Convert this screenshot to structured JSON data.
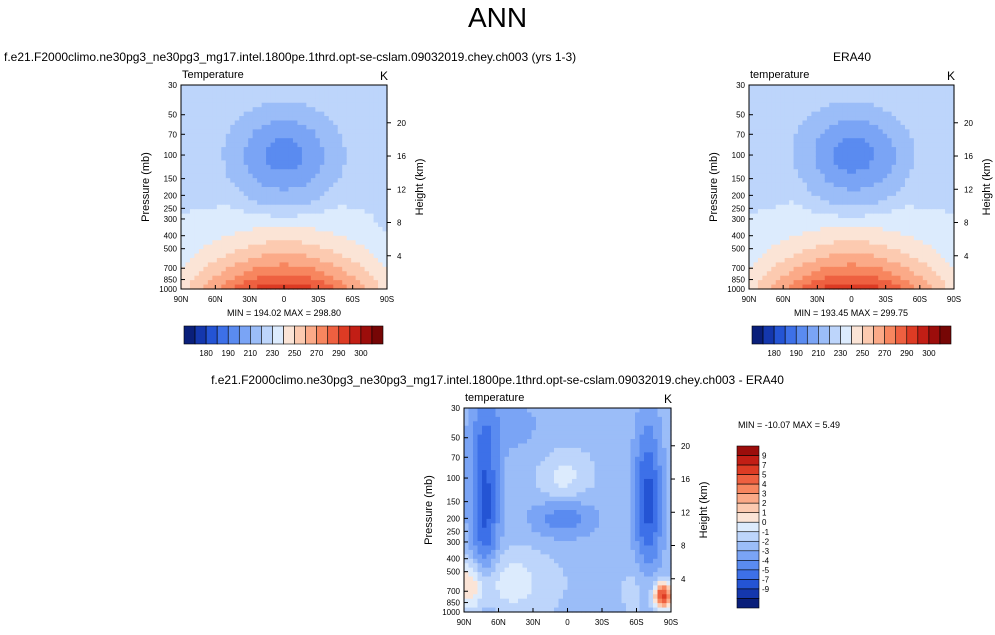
{
  "page": {
    "title": "ANN"
  },
  "chart_data": [
    {
      "type": "heatmap",
      "title": "f.e21.F2000climo.ne30pg3_ne30pg3_mg17.intel.1800pe.1thrd.opt-se-cslam.09032019.chey.ch003 (yrs 1-3)",
      "variable": "Temperature",
      "units": "K",
      "xlabel": "",
      "ylabel": "Pressure (mb)",
      "y2label": "Height (km)",
      "x_ticks": [
        "90N",
        "60N",
        "30N",
        "0",
        "30S",
        "60S",
        "90S"
      ],
      "x_range": [
        90,
        -90
      ],
      "y_ticks": [
        30,
        50,
        70,
        100,
        150,
        200,
        250,
        300,
        400,
        500,
        700,
        850,
        1000
      ],
      "y_range": [
        30,
        1000
      ],
      "y_scale": "log",
      "y2_ticks": [
        20,
        16,
        12,
        8,
        4
      ],
      "stats": "MIN = 194.02  MAX = 298.80",
      "min": 194.02,
      "max": 298.8,
      "colorbar": {
        "orientation": "horizontal",
        "labels": [
          "180",
          "190",
          "210",
          "230",
          "250",
          "270",
          "290",
          "300"
        ]
      }
    },
    {
      "type": "heatmap",
      "title": "ERA40",
      "variable": "temperature",
      "units": "K",
      "xlabel": "",
      "ylabel": "Pressure (mb)",
      "y2label": "Height (km)",
      "x_ticks": [
        "90N",
        "60N",
        "30N",
        "0",
        "30S",
        "60S",
        "90S"
      ],
      "x_range": [
        90,
        -90
      ],
      "y_ticks": [
        30,
        50,
        70,
        100,
        150,
        200,
        250,
        300,
        400,
        500,
        700,
        850,
        1000
      ],
      "y_range": [
        30,
        1000
      ],
      "y_scale": "log",
      "y2_ticks": [
        20,
        16,
        12,
        8,
        4
      ],
      "stats": "MIN = 193.45  MAX = 299.75",
      "min": 193.45,
      "max": 299.75,
      "colorbar": {
        "orientation": "horizontal",
        "labels": [
          "180",
          "190",
          "210",
          "230",
          "250",
          "270",
          "290",
          "300"
        ]
      }
    },
    {
      "type": "heatmap",
      "title": "f.e21.F2000climo.ne30pg3_ne30pg3_mg17.intel.1800pe.1thrd.opt-se-cslam.09032019.chey.ch003 - ERA40",
      "variable": "temperature",
      "units": "K",
      "xlabel": "",
      "ylabel": "Pressure (mb)",
      "y2label": "Height (km)",
      "x_ticks": [
        "90N",
        "60N",
        "30N",
        "0",
        "30S",
        "60S",
        "90S"
      ],
      "x_range": [
        90,
        -90
      ],
      "y_ticks": [
        30,
        50,
        70,
        100,
        150,
        200,
        250,
        300,
        400,
        500,
        700,
        850,
        1000
      ],
      "y_range": [
        30,
        1000
      ],
      "y_scale": "log",
      "y2_ticks": [
        20,
        16,
        12,
        8,
        4
      ],
      "stats": "MIN = -10.07  MAX =   5.49",
      "min": -10.07,
      "max": 5.49,
      "colorbar": {
        "orientation": "vertical",
        "labels": [
          "9",
          "7",
          "5",
          "4",
          "3",
          "2",
          "1",
          "0",
          "-1",
          "-2",
          "-3",
          "-4",
          "-5",
          "-7",
          "-9"
        ]
      }
    }
  ],
  "colors": {
    "abs_palette": [
      "#0a1f7a",
      "#1437ad",
      "#2454d4",
      "#3d70e8",
      "#5a8bf0",
      "#7aa4f5",
      "#9bbdf8",
      "#bdd5fb",
      "#dcebfd",
      "#fbe4d6",
      "#fccab0",
      "#fbaa88",
      "#f7865f",
      "#ee6040",
      "#dd3b24",
      "#c21e15",
      "#9c0d0b",
      "#760605"
    ],
    "diff_palette": [
      "#0a1f7a",
      "#1437ad",
      "#2454d4",
      "#3d70e8",
      "#5a8bf0",
      "#7aa4f5",
      "#9bbdf8",
      "#bdd5fb",
      "#dcebfd",
      "#fbe4d6",
      "#fccab0",
      "#fbaa88",
      "#f7865f",
      "#ee6040",
      "#dd3b24",
      "#c21e15",
      "#9c0d0b"
    ]
  }
}
